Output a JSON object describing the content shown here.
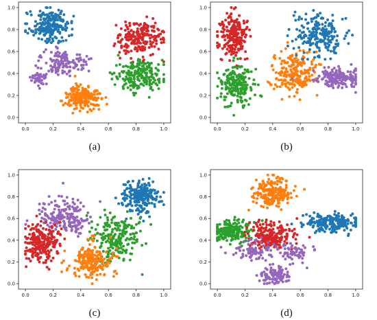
{
  "figure": {
    "colors": {
      "blue": "#1f77b4",
      "orange": "#ff7f0e",
      "green": "#2ca02c",
      "red": "#d62728",
      "purple": "#9467bd"
    }
  },
  "chart_data": [
    {
      "type": "scatter",
      "caption": "(a)",
      "xlim": [
        -0.05,
        1.05
      ],
      "ylim": [
        -0.05,
        1.05
      ],
      "xticks": [
        0.0,
        0.2,
        0.4,
        0.6,
        0.8,
        1.0
      ],
      "yticks": [
        0.0,
        0.2,
        0.4,
        0.6,
        0.8,
        1.0
      ],
      "tick_labels": [
        "0.0",
        "0.2",
        "0.4",
        "0.6",
        "0.8",
        "1.0"
      ],
      "grid": false,
      "clusters": [
        {
          "color": "blue",
          "center": [
            0.18,
            0.83
          ],
          "spread": [
            0.07,
            0.07
          ],
          "count": 230
        },
        {
          "color": "purple",
          "center": [
            0.28,
            0.5
          ],
          "spread": [
            0.08,
            0.06
          ],
          "count": 130
        },
        {
          "color": "purple",
          "center": [
            0.1,
            0.36
          ],
          "spread": [
            0.03,
            0.04
          ],
          "count": 40
        },
        {
          "color": "orange",
          "center": [
            0.41,
            0.18
          ],
          "spread": [
            0.07,
            0.06
          ],
          "count": 200
        },
        {
          "color": "red",
          "center": [
            0.83,
            0.73
          ],
          "spread": [
            0.08,
            0.08
          ],
          "count": 220
        },
        {
          "color": "green",
          "center": [
            0.82,
            0.38
          ],
          "spread": [
            0.08,
            0.07
          ],
          "count": 200
        }
      ]
    },
    {
      "type": "scatter",
      "caption": "(b)",
      "xlim": [
        -0.05,
        1.05
      ],
      "ylim": [
        -0.05,
        1.05
      ],
      "xticks": [
        0.0,
        0.2,
        0.4,
        0.6,
        0.8,
        1.0
      ],
      "yticks": [
        0.0,
        0.2,
        0.4,
        0.6,
        0.8,
        1.0
      ],
      "tick_labels": [
        "0.0",
        "0.2",
        "0.4",
        "0.6",
        "0.8",
        "1.0"
      ],
      "grid": false,
      "clusters": [
        {
          "color": "red",
          "center": [
            0.12,
            0.74
          ],
          "spread": [
            0.05,
            0.1
          ],
          "count": 220
        },
        {
          "color": "green",
          "center": [
            0.14,
            0.3
          ],
          "spread": [
            0.06,
            0.09
          ],
          "count": 210
        },
        {
          "color": "orange",
          "center": [
            0.55,
            0.4
          ],
          "spread": [
            0.08,
            0.09
          ],
          "count": 220
        },
        {
          "color": "blue",
          "center": [
            0.74,
            0.75
          ],
          "spread": [
            0.09,
            0.09
          ],
          "count": 220
        },
        {
          "color": "purple",
          "center": [
            0.86,
            0.36
          ],
          "spread": [
            0.08,
            0.04
          ],
          "count": 180
        }
      ]
    },
    {
      "type": "scatter",
      "caption": "(c)",
      "xlim": [
        -0.05,
        1.05
      ],
      "ylim": [
        -0.05,
        1.05
      ],
      "xticks": [
        0.0,
        0.2,
        0.4,
        0.6,
        0.8,
        1.0
      ],
      "yticks": [
        0.0,
        0.2,
        0.4,
        0.6,
        0.8,
        1.0
      ],
      "tick_labels": [
        "0.0",
        "0.2",
        "0.4",
        "0.6",
        "0.8",
        "1.0"
      ],
      "grid": false,
      "clusters": [
        {
          "color": "blue",
          "center": [
            0.84,
            0.8
          ],
          "spread": [
            0.07,
            0.07
          ],
          "count": 230
        },
        {
          "color": "purple",
          "center": [
            0.28,
            0.62
          ],
          "spread": [
            0.09,
            0.08
          ],
          "count": 190
        },
        {
          "color": "red",
          "center": [
            0.12,
            0.38
          ],
          "spread": [
            0.07,
            0.09
          ],
          "count": 220
        },
        {
          "color": "green",
          "center": [
            0.66,
            0.42
          ],
          "spread": [
            0.09,
            0.1
          ],
          "count": 220
        },
        {
          "color": "orange",
          "center": [
            0.48,
            0.2
          ],
          "spread": [
            0.08,
            0.08
          ],
          "count": 210
        }
      ]
    },
    {
      "type": "scatter",
      "caption": "(d)",
      "xlim": [
        -0.05,
        1.05
      ],
      "ylim": [
        -0.05,
        1.05
      ],
      "xticks": [
        0.0,
        0.2,
        0.4,
        0.6,
        0.8,
        1.0
      ],
      "yticks": [
        0.0,
        0.2,
        0.4,
        0.6,
        0.8,
        1.0
      ],
      "tick_labels": [
        "0.0",
        "0.2",
        "0.4",
        "0.6",
        "0.8",
        "1.0"
      ],
      "grid": false,
      "clusters": [
        {
          "color": "orange",
          "center": [
            0.4,
            0.84
          ],
          "spread": [
            0.07,
            0.07
          ],
          "count": 220
        },
        {
          "color": "green",
          "center": [
            0.1,
            0.48
          ],
          "spread": [
            0.07,
            0.05
          ],
          "count": 200
        },
        {
          "color": "red",
          "center": [
            0.4,
            0.44
          ],
          "spread": [
            0.08,
            0.06
          ],
          "count": 210
        },
        {
          "color": "blue",
          "center": [
            0.83,
            0.56
          ],
          "spread": [
            0.1,
            0.04
          ],
          "count": 220
        },
        {
          "color": "purple",
          "center": [
            0.42,
            0.08
          ],
          "spread": [
            0.05,
            0.04
          ],
          "count": 100
        },
        {
          "color": "purple",
          "center": [
            0.27,
            0.3
          ],
          "spread": [
            0.08,
            0.05
          ],
          "count": 80
        },
        {
          "color": "purple",
          "center": [
            0.57,
            0.28
          ],
          "spread": [
            0.05,
            0.05
          ],
          "count": 60
        }
      ]
    }
  ]
}
